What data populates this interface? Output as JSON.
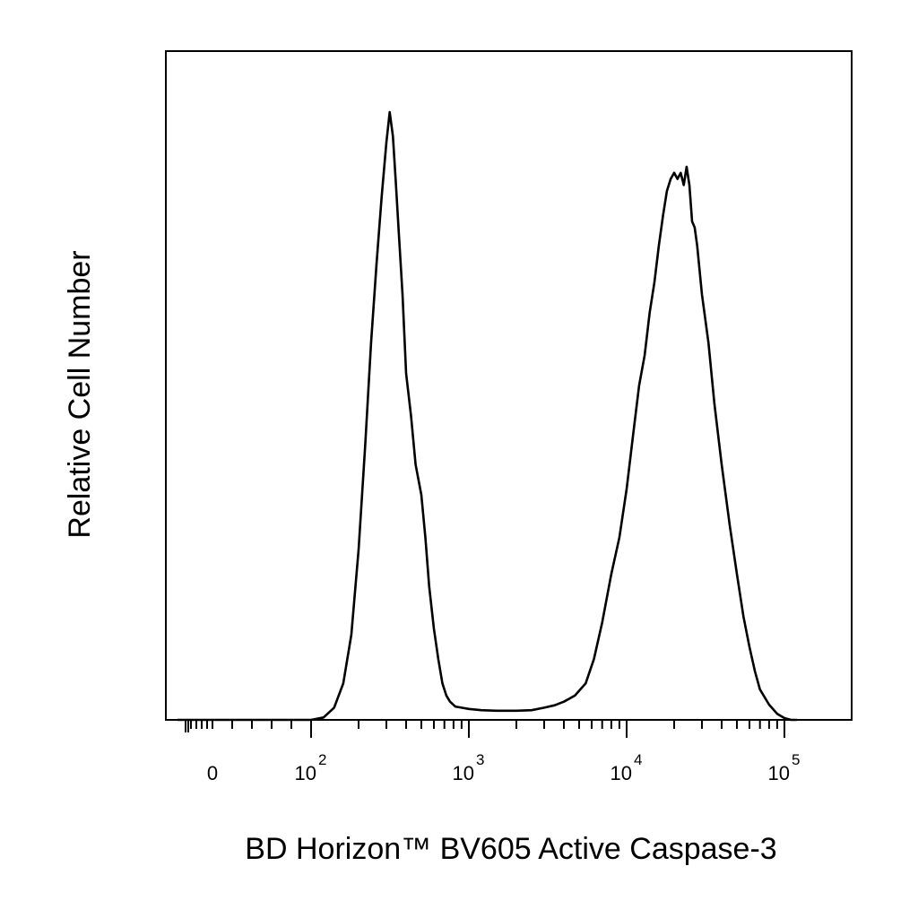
{
  "chart_data": {
    "type": "line",
    "subtype": "flow-cytometry-histogram",
    "xlabel": "BD Horizon™ BV605 Active Caspase-3",
    "ylabel": "Relative Cell Number",
    "x_scale": "biexponential",
    "xlim": [
      -150,
      180000
    ],
    "ylim": [
      0,
      1
    ],
    "x_tick_labels": [
      {
        "value": 0,
        "base": "0",
        "exp": ""
      },
      {
        "value": 100,
        "base": "10",
        "exp": "2"
      },
      {
        "value": 1000,
        "base": "10",
        "exp": "3"
      },
      {
        "value": 10000,
        "base": "10",
        "exp": "4"
      },
      {
        "value": 100000,
        "base": "10",
        "exp": "5"
      }
    ],
    "grid": false,
    "legend": "none",
    "series": [
      {
        "color": "#000000",
        "x": [
          100,
          120,
          140,
          160,
          180,
          200,
          220,
          240,
          260,
          280,
          300,
          315,
          330,
          345,
          360,
          380,
          400,
          430,
          460,
          500,
          530,
          560,
          600,
          640,
          680,
          720,
          760,
          820,
          900,
          1000,
          1200,
          1500,
          2000,
          2500,
          3000,
          3500,
          4000,
          4700,
          5500,
          6200,
          7000,
          8000,
          9000,
          10000,
          11000,
          12000,
          13000,
          14000,
          15000,
          16000,
          17000,
          18000,
          19000,
          20000,
          21000,
          22000,
          23000,
          24000,
          25000,
          26000,
          27000,
          28000,
          30000,
          33000,
          36000,
          40000,
          45000,
          50000,
          55000,
          60000,
          65000,
          70000,
          80000,
          90000,
          100000,
          110000,
          120000
        ],
        "y": [
          0,
          0.004,
          0.02,
          0.06,
          0.14,
          0.28,
          0.45,
          0.62,
          0.75,
          0.86,
          0.95,
          1.0,
          0.96,
          0.88,
          0.8,
          0.7,
          0.57,
          0.5,
          0.42,
          0.37,
          0.3,
          0.22,
          0.15,
          0.1,
          0.06,
          0.04,
          0.03,
          0.022,
          0.02,
          0.018,
          0.016,
          0.015,
          0.015,
          0.016,
          0.02,
          0.024,
          0.03,
          0.04,
          0.06,
          0.1,
          0.16,
          0.24,
          0.3,
          0.38,
          0.47,
          0.55,
          0.6,
          0.67,
          0.72,
          0.78,
          0.83,
          0.87,
          0.89,
          0.9,
          0.89,
          0.9,
          0.88,
          0.91,
          0.88,
          0.82,
          0.81,
          0.78,
          0.7,
          0.62,
          0.52,
          0.42,
          0.32,
          0.24,
          0.17,
          0.12,
          0.08,
          0.05,
          0.025,
          0.01,
          0.003,
          0.0,
          0.0
        ]
      }
    ]
  }
}
